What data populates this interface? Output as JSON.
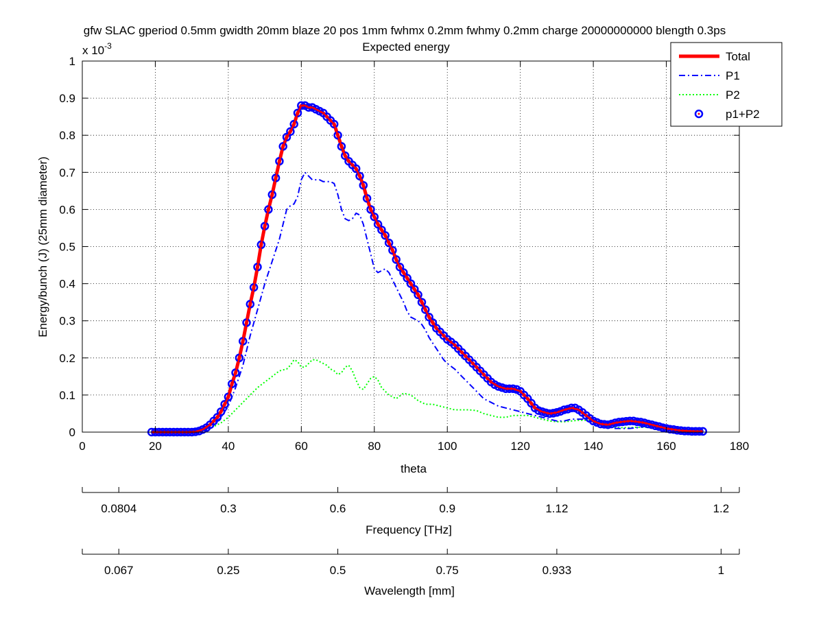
{
  "chart_data": {
    "type": "line",
    "title": "gfw SLAC gperiod 0.5mm gwidth 20mm blaze 20 pos 1mm fwhmx 0.2mm fwhmy 0.2mm charge 20000000000 blength 0.3ps",
    "subtitle": "Expected energy",
    "xlabel": "theta",
    "ylabel": "Energy/bunch (J) (25mm diameter)",
    "y_exponent_label": "x 10",
    "y_exponent": "-3",
    "xlim": [
      0,
      180
    ],
    "ylim": [
      0,
      1
    ],
    "x_ticks": [
      "0",
      "20",
      "40",
      "60",
      "80",
      "100",
      "120",
      "140",
      "160",
      "180"
    ],
    "y_ticks": [
      "0",
      "0.1",
      "0.2",
      "0.3",
      "0.4",
      "0.5",
      "0.6",
      "0.7",
      "0.8",
      "0.9",
      "1"
    ],
    "grid": true,
    "legend": "top-right",
    "series": [
      {
        "name": "Total",
        "color": "#ff0000",
        "style": "solid",
        "x": [
          19,
          21,
          23,
          25,
          27,
          29,
          31,
          33,
          35,
          37,
          38,
          39,
          40,
          41,
          42,
          43,
          44,
          45,
          46,
          47,
          48,
          49,
          50,
          51,
          52,
          53,
          54,
          55,
          56,
          57,
          58,
          59,
          60,
          61,
          62,
          63,
          64,
          65,
          66,
          67,
          68,
          69,
          70,
          71,
          72,
          73,
          74,
          75,
          76,
          77,
          78,
          79,
          80,
          81,
          82,
          83,
          84,
          85,
          86,
          87,
          88,
          89,
          90,
          91,
          92,
          93,
          94,
          95,
          96,
          97,
          98,
          99,
          100,
          102,
          104,
          106,
          108,
          110,
          112,
          114,
          116,
          118,
          120,
          122,
          124,
          126,
          128,
          130,
          132,
          134,
          136,
          138,
          140,
          142,
          144,
          146,
          148,
          150,
          152,
          154,
          156,
          158,
          160,
          162,
          164,
          166,
          168,
          170
        ],
        "values": [
          0.0,
          0.0,
          0.0,
          0.0,
          0.0,
          0.0,
          0.001,
          0.007,
          0.02,
          0.04,
          0.055,
          0.075,
          0.095,
          0.13,
          0.16,
          0.2,
          0.245,
          0.295,
          0.345,
          0.39,
          0.445,
          0.505,
          0.555,
          0.6,
          0.64,
          0.685,
          0.73,
          0.77,
          0.795,
          0.81,
          0.83,
          0.86,
          0.88,
          0.88,
          0.875,
          0.875,
          0.87,
          0.865,
          0.86,
          0.85,
          0.84,
          0.83,
          0.8,
          0.77,
          0.745,
          0.73,
          0.72,
          0.71,
          0.69,
          0.665,
          0.63,
          0.6,
          0.58,
          0.56,
          0.545,
          0.53,
          0.51,
          0.49,
          0.465,
          0.445,
          0.43,
          0.415,
          0.4,
          0.385,
          0.37,
          0.35,
          0.33,
          0.31,
          0.295,
          0.28,
          0.27,
          0.26,
          0.25,
          0.235,
          0.215,
          0.195,
          0.175,
          0.155,
          0.135,
          0.123,
          0.117,
          0.117,
          0.11,
          0.09,
          0.065,
          0.055,
          0.05,
          0.053,
          0.06,
          0.065,
          0.06,
          0.045,
          0.03,
          0.022,
          0.02,
          0.025,
          0.028,
          0.03,
          0.028,
          0.025,
          0.02,
          0.015,
          0.01,
          0.007,
          0.004,
          0.003,
          0.002,
          0.002
        ]
      },
      {
        "name": "P1",
        "color": "#0000ff",
        "style": "dashdot",
        "x": [
          30,
          32,
          34,
          36,
          38,
          40,
          42,
          44,
          46,
          48,
          50,
          52,
          54,
          55,
          56,
          57,
          58,
          59,
          60,
          61,
          62,
          63,
          64,
          65,
          66,
          67,
          68,
          69,
          70,
          71,
          72,
          73,
          74,
          75,
          76,
          77,
          78,
          79,
          80,
          81,
          82,
          83,
          84,
          85,
          86,
          87,
          88,
          89,
          90,
          91,
          92,
          93,
          94,
          95,
          96,
          97,
          98,
          99,
          100,
          102,
          104,
          106,
          108,
          110,
          112,
          114,
          116,
          118,
          120,
          122,
          124,
          126,
          128,
          130,
          132,
          134,
          136,
          138,
          140,
          142,
          144,
          146,
          148,
          150,
          152,
          154,
          156,
          158,
          160,
          162,
          164,
          166,
          168,
          170
        ],
        "values": [
          0.0,
          0.002,
          0.008,
          0.02,
          0.04,
          0.07,
          0.12,
          0.18,
          0.26,
          0.33,
          0.4,
          0.46,
          0.52,
          0.56,
          0.6,
          0.61,
          0.615,
          0.635,
          0.68,
          0.7,
          0.69,
          0.68,
          0.68,
          0.68,
          0.675,
          0.675,
          0.675,
          0.67,
          0.64,
          0.6,
          0.575,
          0.57,
          0.575,
          0.59,
          0.585,
          0.56,
          0.52,
          0.48,
          0.44,
          0.43,
          0.435,
          0.44,
          0.43,
          0.41,
          0.39,
          0.37,
          0.35,
          0.325,
          0.31,
          0.305,
          0.3,
          0.29,
          0.275,
          0.255,
          0.24,
          0.225,
          0.21,
          0.195,
          0.185,
          0.17,
          0.15,
          0.13,
          0.11,
          0.09,
          0.08,
          0.07,
          0.065,
          0.06,
          0.055,
          0.05,
          0.045,
          0.04,
          0.035,
          0.03,
          0.03,
          0.035,
          0.035,
          0.035,
          0.03,
          0.02,
          0.015,
          0.01,
          0.01,
          0.01,
          0.012,
          0.015,
          0.015,
          0.015,
          0.012,
          0.01,
          0.007,
          0.004,
          0.002,
          0.001
        ]
      },
      {
        "name": "P2",
        "color": "#00ff00",
        "style": "dotted",
        "x": [
          30,
          32,
          34,
          36,
          38,
          40,
          42,
          44,
          46,
          48,
          50,
          52,
          54,
          56,
          57,
          58,
          59,
          60,
          61,
          62,
          63,
          64,
          65,
          66,
          67,
          68,
          69,
          70,
          71,
          72,
          73,
          74,
          75,
          76,
          77,
          78,
          79,
          80,
          81,
          82,
          84,
          86,
          88,
          90,
          92,
          94,
          96,
          98,
          100,
          102,
          104,
          106,
          108,
          110,
          112,
          114,
          116,
          118,
          120,
          122,
          124,
          126,
          128,
          130,
          132,
          134,
          136,
          138,
          140,
          142,
          144,
          146,
          148,
          150,
          152,
          154,
          156,
          158,
          160,
          162,
          164,
          166,
          168,
          170
        ],
        "values": [
          0.0,
          0.002,
          0.006,
          0.015,
          0.025,
          0.04,
          0.06,
          0.08,
          0.1,
          0.12,
          0.135,
          0.15,
          0.165,
          0.17,
          0.18,
          0.195,
          0.19,
          0.175,
          0.175,
          0.185,
          0.195,
          0.195,
          0.19,
          0.185,
          0.18,
          0.17,
          0.165,
          0.155,
          0.16,
          0.175,
          0.18,
          0.165,
          0.14,
          0.12,
          0.115,
          0.13,
          0.145,
          0.15,
          0.14,
          0.12,
          0.1,
          0.09,
          0.105,
          0.1,
          0.085,
          0.075,
          0.075,
          0.07,
          0.065,
          0.06,
          0.06,
          0.06,
          0.058,
          0.05,
          0.045,
          0.04,
          0.04,
          0.045,
          0.045,
          0.045,
          0.04,
          0.035,
          0.03,
          0.028,
          0.028,
          0.03,
          0.032,
          0.032,
          0.028,
          0.02,
          0.015,
          0.012,
          0.012,
          0.012,
          0.013,
          0.013,
          0.012,
          0.01,
          0.008,
          0.005,
          0.004,
          0.002,
          0.001,
          0.0
        ]
      },
      {
        "name": "p1+P2",
        "color": "#0000ff",
        "style": "circles",
        "x": [
          19,
          20,
          21,
          22,
          23,
          24,
          25,
          26,
          27,
          28,
          29,
          30,
          31,
          32,
          33,
          34,
          35,
          36,
          37,
          38,
          39,
          40,
          41,
          42,
          43,
          44,
          45,
          46,
          47,
          48,
          49,
          50,
          51,
          52,
          53,
          54,
          55,
          56,
          57,
          58,
          59,
          60,
          61,
          62,
          63,
          64,
          65,
          66,
          67,
          68,
          69,
          70,
          71,
          72,
          73,
          74,
          75,
          76,
          77,
          78,
          79,
          80,
          81,
          82,
          83,
          84,
          85,
          86,
          87,
          88,
          89,
          90,
          91,
          92,
          93,
          94,
          95,
          96,
          97,
          98,
          99,
          100,
          101,
          102,
          103,
          104,
          105,
          106,
          107,
          108,
          109,
          110,
          111,
          112,
          113,
          114,
          115,
          116,
          117,
          118,
          119,
          120,
          121,
          122,
          123,
          124,
          125,
          126,
          127,
          128,
          129,
          130,
          131,
          132,
          133,
          134,
          135,
          136,
          137,
          138,
          139,
          140,
          141,
          142,
          143,
          144,
          145,
          146,
          147,
          148,
          149,
          150,
          151,
          152,
          153,
          154,
          155,
          156,
          157,
          158,
          159,
          160,
          161,
          162,
          163,
          164,
          165,
          166,
          167,
          168,
          169,
          170
        ],
        "values": [
          0.0,
          0.0,
          0.0,
          0.0,
          0.0,
          0.0,
          0.0,
          0.0,
          0.0,
          0.0,
          0.0,
          0.0,
          0.001,
          0.003,
          0.007,
          0.012,
          0.02,
          0.03,
          0.04,
          0.055,
          0.075,
          0.095,
          0.13,
          0.16,
          0.2,
          0.245,
          0.295,
          0.345,
          0.39,
          0.445,
          0.505,
          0.555,
          0.6,
          0.64,
          0.685,
          0.73,
          0.77,
          0.795,
          0.81,
          0.83,
          0.86,
          0.88,
          0.88,
          0.875,
          0.875,
          0.87,
          0.865,
          0.86,
          0.85,
          0.84,
          0.83,
          0.8,
          0.77,
          0.745,
          0.73,
          0.72,
          0.71,
          0.69,
          0.665,
          0.63,
          0.6,
          0.58,
          0.56,
          0.545,
          0.53,
          0.51,
          0.49,
          0.465,
          0.445,
          0.43,
          0.415,
          0.4,
          0.385,
          0.37,
          0.35,
          0.33,
          0.31,
          0.295,
          0.28,
          0.27,
          0.26,
          0.25,
          0.243,
          0.235,
          0.225,
          0.215,
          0.205,
          0.195,
          0.185,
          0.175,
          0.165,
          0.155,
          0.145,
          0.135,
          0.128,
          0.123,
          0.12,
          0.117,
          0.117,
          0.117,
          0.115,
          0.11,
          0.1,
          0.09,
          0.078,
          0.065,
          0.058,
          0.055,
          0.052,
          0.05,
          0.051,
          0.053,
          0.056,
          0.06,
          0.062,
          0.065,
          0.065,
          0.06,
          0.053,
          0.045,
          0.037,
          0.03,
          0.026,
          0.022,
          0.021,
          0.02,
          0.022,
          0.025,
          0.027,
          0.028,
          0.029,
          0.03,
          0.03,
          0.028,
          0.027,
          0.025,
          0.022,
          0.02,
          0.017,
          0.015,
          0.012,
          0.01,
          0.008,
          0.007,
          0.005,
          0.004,
          0.003,
          0.003,
          0.002,
          0.002,
          0.002,
          0.002
        ]
      }
    ],
    "secondary_axes": [
      {
        "label": "Frequency [THz]",
        "ticks": [
          "0.0804",
          "0.3",
          "0.6",
          "0.9",
          "1.12",
          "1.2"
        ],
        "tick_theta": [
          10,
          40,
          70,
          100,
          130,
          175
        ]
      },
      {
        "label": "Wavelength [mm]",
        "ticks": [
          "0.067",
          "0.25",
          "0.5",
          "0.75",
          "0.933",
          "1"
        ],
        "tick_theta": [
          10,
          40,
          70,
          100,
          130,
          175
        ]
      }
    ]
  }
}
